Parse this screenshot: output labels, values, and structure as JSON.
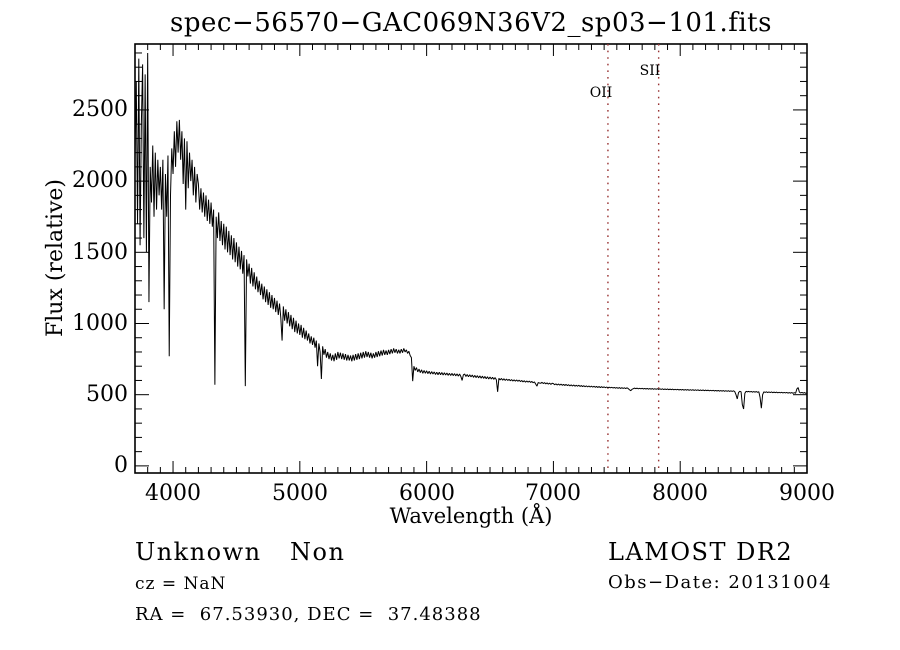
{
  "title": "spec−56570−GAC069N36V2_sp03−101.fits",
  "footer": {
    "class_label": "Unknown",
    "subclass_label": "Non",
    "cz_text": "cz = NaN",
    "radec_text": "RA =  67.53930, DEC =  37.48388",
    "survey_text": "LAMOST DR2",
    "obs_date_text": "Obs−Date: 20131004"
  },
  "chart_data": {
    "type": "line",
    "title": "spec−56570−GAC069N36V2_sp03−101.fits",
    "xlabel": "Wavelength (Å)",
    "ylabel": "Flux (relative)",
    "xlim": [
      3700,
      9000
    ],
    "ylim": [
      -50,
      2963
    ],
    "xticks": [
      4000,
      5000,
      6000,
      7000,
      8000,
      9000
    ],
    "yticks": [
      0,
      500,
      1000,
      1500,
      2000,
      2500
    ],
    "x_minor_step": 100,
    "y_minor_step": 100,
    "grid": false,
    "line_color": "#000000",
    "frame_color": "#000000",
    "marker_line_color": "#993333",
    "marker_lines": [
      {
        "label": "OII",
        "x": 7430
      },
      {
        "label": "SII",
        "x": 7830
      }
    ],
    "series": {
      "name": "flux",
      "lambda_start": 3700,
      "lambda_step": 10,
      "flux": [
        2150,
        2700,
        1700,
        2860,
        1550,
        2400,
        2820,
        1600,
        2750,
        1500,
        2900,
        1150,
        2100,
        1850,
        2250,
        1750,
        2200,
        1800,
        2150,
        1900,
        2100,
        1800,
        2150,
        1100,
        2050,
        1750,
        2180,
        770,
        1900,
        2230,
        2050,
        2350,
        2100,
        2420,
        2200,
        2430,
        2150,
        2350,
        1980,
        2300,
        1800,
        2280,
        1950,
        2200,
        2000,
        2150,
        1900,
        2100,
        1850,
        2050,
        1980,
        1800,
        1950,
        1780,
        1920,
        1750,
        1900,
        1720,
        1870,
        1700,
        1850,
        1680,
        1800,
        570,
        1750,
        1600,
        1780,
        1580,
        1720,
        1550,
        1700,
        1520,
        1680,
        1500,
        1650,
        1480,
        1620,
        1450,
        1600,
        1430,
        1570,
        1400,
        1540,
        1380,
        1510,
        1350,
        1480,
        560,
        1450,
        1330,
        1420,
        1280,
        1390,
        1260,
        1360,
        1240,
        1330,
        1220,
        1300,
        1200,
        1280,
        1170,
        1260,
        1150,
        1240,
        1130,
        1220,
        1110,
        1200,
        1100,
        1180,
        1080,
        1160,
        1060,
        1140,
        1040,
        880,
        1120,
        1020,
        1100,
        1000,
        1080,
        980,
        1060,
        960,
        1040,
        940,
        1020,
        930,
        1000,
        920,
        990,
        900,
        970,
        890,
        950,
        880,
        930,
        860,
        910,
        850,
        900,
        830,
        880,
        700,
        860,
        800,
        610,
        840,
        780,
        820,
        760,
        800,
        750,
        790,
        740,
        780,
        735,
        790,
        745,
        800,
        755,
        795,
        750,
        790,
        745,
        785,
        740,
        780,
        740,
        775,
        735,
        780,
        740,
        785,
        745,
        790,
        750,
        795,
        755,
        800,
        760,
        805,
        765,
        800,
        760,
        795,
        755,
        790,
        760,
        800,
        765,
        805,
        770,
        810,
        775,
        815,
        780,
        810,
        780,
        815,
        785,
        820,
        790,
        825,
        795,
        820,
        790,
        815,
        790,
        820,
        795,
        825,
        800,
        815,
        790,
        805,
        775,
        760,
        595,
        700,
        670,
        690,
        660,
        680,
        655,
        675,
        650,
        670,
        650,
        668,
        648,
        665,
        645,
        662,
        645,
        660,
        642,
        658,
        640,
        658,
        640,
        656,
        638,
        654,
        638,
        652,
        636,
        650,
        635,
        650,
        634,
        648,
        632,
        646,
        630,
        645,
        628,
        600,
        640,
        645,
        628,
        642,
        626,
        640,
        625,
        638,
        622,
        636,
        620,
        634,
        618,
        632,
        616,
        630,
        615,
        628,
        612,
        626,
        610,
        624,
        610,
        622,
        608,
        620,
        605,
        520,
        615,
        604,
        614,
        602,
        612,
        600,
        610,
        600,
        608,
        598,
        606,
        596,
        604,
        595,
        603,
        594,
        602,
        592,
        600,
        590,
        598,
        588,
        596,
        588,
        595,
        586,
        593,
        584,
        590,
        575,
        560,
        585,
        582,
        580,
        587,
        578,
        585,
        576,
        583,
        574,
        581,
        572,
        580,
        578,
        570,
        576,
        568,
        575,
        567,
        574,
        566,
        572,
        565,
        572,
        564,
        570,
        562,
        569,
        561,
        568,
        560,
        566,
        559,
        566,
        558,
        564,
        557,
        563,
        556,
        562,
        555,
        561,
        554,
        560,
        553,
        559,
        552,
        558,
        551,
        557,
        550,
        556,
        550,
        555,
        549,
        554,
        548,
        553,
        548,
        552,
        547,
        551,
        546,
        550,
        545,
        550,
        544,
        549,
        544,
        548,
        543,
        548,
        543,
        535,
        528,
        538,
        542,
        546,
        542,
        546,
        541,
        545,
        541,
        545,
        540,
        544,
        540,
        544,
        539,
        543,
        539,
        543,
        538,
        542,
        538,
        542,
        537,
        541,
        537,
        541,
        536,
        540,
        536,
        540,
        535,
        539,
        535,
        539,
        534,
        538,
        534,
        538,
        533,
        537,
        533,
        537,
        532,
        536,
        532,
        536,
        531,
        535,
        531,
        535,
        530,
        534,
        530,
        534,
        529,
        533,
        529,
        533,
        528,
        532,
        528,
        532,
        527,
        531,
        527,
        531,
        526,
        530,
        526,
        530,
        525,
        529,
        525,
        529,
        524,
        528,
        524,
        528,
        523,
        527,
        523,
        527,
        522,
        500,
        470,
        515,
        524,
        520,
        430,
        400,
        510,
        524,
        520,
        523,
        519,
        523,
        518,
        522,
        518,
        522,
        517,
        521,
        480,
        405,
        500,
        520,
        516,
        520,
        515,
        519,
        515,
        519,
        514,
        518,
        514,
        518,
        513,
        517,
        513,
        517,
        512,
        516,
        512,
        516,
        511,
        515,
        511,
        515,
        510,
        514,
        510,
        540,
        550,
        518,
        512,
        516,
        511,
        515,
        510,
        512
      ]
    }
  }
}
